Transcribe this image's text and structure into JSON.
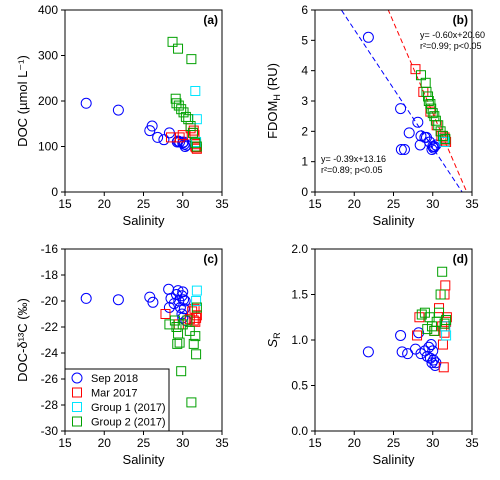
{
  "chart_data": [
    {
      "panel": "(a)",
      "type": "scatter",
      "xlabel": "Salinity",
      "ylabel": "DOC (µmol L⁻¹)",
      "xlim": [
        15,
        35
      ],
      "ylim": [
        0,
        400
      ],
      "xticks": [
        15,
        20,
        25,
        30,
        35
      ],
      "yticks": [
        0,
        100,
        200,
        300,
        400
      ],
      "series": [
        {
          "name": "Sep 2018",
          "marker": "circle",
          "color": "#0000ff",
          "points": [
            [
              17.7,
              195
            ],
            [
              21.8,
              180
            ],
            [
              25.8,
              135
            ],
            [
              26.1,
              145
            ],
            [
              26.8,
              120
            ],
            [
              27.6,
              115
            ],
            [
              28.3,
              130
            ],
            [
              29.3,
              110
            ],
            [
              29.4,
              112
            ],
            [
              29.6,
              110
            ],
            [
              30.0,
              108
            ],
            [
              30.2,
              105
            ],
            [
              30.3,
              100
            ],
            [
              30.5,
              103
            ],
            [
              30.1,
              110
            ]
          ]
        },
        {
          "name": "Mar 2017",
          "marker": "square",
          "color": "#ff0000",
          "points": [
            [
              28.5,
              120
            ],
            [
              29.6,
              120
            ],
            [
              30.0,
              125
            ],
            [
              31.0,
              140
            ],
            [
              31.3,
              130
            ],
            [
              31.5,
              125
            ],
            [
              31.6,
              100
            ],
            [
              31.7,
              98
            ],
            [
              31.8,
              95
            ],
            [
              31.7,
              105
            ],
            [
              31.4,
              135
            ]
          ]
        },
        {
          "name": "Group 1 (2017)",
          "marker": "square",
          "color": "#00e5ff",
          "points": [
            [
              31.6,
              222
            ],
            [
              31.8,
              160
            ],
            [
              31.7,
              110
            ]
          ]
        },
        {
          "name": "Group 2 (2017)",
          "marker": "square",
          "color": "#00a000",
          "points": [
            [
              28.7,
              330
            ],
            [
              29.4,
              315
            ],
            [
              31.1,
              292
            ],
            [
              29.1,
              205
            ],
            [
              29.2,
              195
            ],
            [
              29.5,
              190
            ],
            [
              29.8,
              182
            ],
            [
              30.1,
              175
            ],
            [
              30.4,
              165
            ],
            [
              30.7,
              160
            ],
            [
              31.0,
              145
            ],
            [
              31.3,
              130
            ],
            [
              31.6,
              108
            ],
            [
              31.8,
              100
            ]
          ]
        }
      ]
    },
    {
      "panel": "(b)",
      "type": "scatter",
      "xlabel": "Salinity",
      "ylabel": "FDOM",
      "ylabel_sub": "H",
      "ylabel_unit": " (RU)",
      "xlim": [
        15,
        35
      ],
      "ylim": [
        0,
        6
      ],
      "xticks": [
        15,
        20,
        25,
        30,
        35
      ],
      "yticks": [
        0,
        1,
        2,
        3,
        4,
        5,
        6
      ],
      "annotations": [
        {
          "line1": "y= -0.60x+20.60",
          "line2": "r²=0.99; p<0.05"
        },
        {
          "line1": "y= -0.39x+13.16",
          "line2": "r²=0.89; p<0.05"
        }
      ],
      "fits": [
        {
          "slope": -0.6,
          "intercept": 20.6,
          "color": "#ff0000"
        },
        {
          "slope": -0.39,
          "intercept": 13.16,
          "color": "#0000ff"
        }
      ],
      "series": [
        {
          "name": "Sep 2018",
          "marker": "circle",
          "color": "#0000ff",
          "points": [
            [
              21.8,
              5.1
            ],
            [
              25.9,
              2.75
            ],
            [
              26.0,
              1.4
            ],
            [
              26.4,
              1.4
            ],
            [
              27.0,
              1.95
            ],
            [
              28.1,
              2.3
            ],
            [
              28.4,
              1.55
            ],
            [
              28.5,
              1.85
            ],
            [
              29.0,
              1.8
            ],
            [
              29.2,
              1.8
            ],
            [
              29.6,
              1.65
            ],
            [
              29.9,
              1.4
            ],
            [
              30.1,
              1.45
            ],
            [
              30.4,
              1.55
            ],
            [
              30.2,
              1.5
            ],
            [
              30.0,
              1.5
            ]
          ]
        },
        {
          "name": "Mar 2017",
          "marker": "square",
          "color": "#ff0000",
          "points": [
            [
              27.8,
              4.05
            ],
            [
              28.8,
              3.3
            ],
            [
              29.7,
              2.65
            ],
            [
              30.5,
              2.2
            ],
            [
              31.1,
              1.85
            ],
            [
              31.4,
              1.75
            ],
            [
              31.6,
              1.7
            ],
            [
              31.7,
              1.65
            ],
            [
              31.5,
              1.8
            ]
          ]
        },
        {
          "name": "Group 1 (2017)",
          "marker": "square",
          "color": "#00e5ff",
          "points": [
            [
              31.4,
              1.75
            ],
            [
              31.5,
              1.65
            ]
          ]
        },
        {
          "name": "Group 2 (2017)",
          "marker": "square",
          "color": "#00a000",
          "points": [
            [
              28.5,
              3.85
            ],
            [
              29.2,
              3.3
            ],
            [
              29.4,
              3.15
            ],
            [
              29.5,
              3.0
            ],
            [
              29.7,
              2.9
            ],
            [
              29.8,
              2.75
            ],
            [
              30.0,
              2.6
            ],
            [
              30.2,
              2.5
            ],
            [
              30.4,
              2.35
            ],
            [
              30.7,
              2.2
            ],
            [
              31.0,
              2.0
            ],
            [
              31.3,
              1.85
            ],
            [
              31.6,
              1.75
            ],
            [
              29.1,
              3.6
            ]
          ]
        }
      ]
    },
    {
      "panel": "(c)",
      "type": "scatter",
      "xlabel": "Salinity",
      "ylabel": "DOC-δ¹³C (‰)",
      "xlim": [
        15,
        35
      ],
      "ylim": [
        -30,
        -16
      ],
      "xticks": [
        15,
        20,
        25,
        30,
        35
      ],
      "yticks": [
        -30,
        -28,
        -26,
        -24,
        -22,
        -20,
        -18,
        -16
      ],
      "legend": {
        "position": "bottom-left",
        "entries": [
          "Sep 2018",
          "Mar 2017",
          "Group 1 (2017)",
          "Group 2 (2017)"
        ]
      },
      "series": [
        {
          "name": "Sep 2018",
          "marker": "circle",
          "color": "#0000ff",
          "points": [
            [
              17.7,
              -19.8
            ],
            [
              21.8,
              -19.9
            ],
            [
              25.8,
              -19.7
            ],
            [
              26.2,
              -20.1
            ],
            [
              28.2,
              -19.1
            ],
            [
              28.5,
              -19.8
            ],
            [
              28.3,
              -20.5
            ],
            [
              28.9,
              -20.2
            ],
            [
              29.2,
              -19.5
            ],
            [
              29.4,
              -19.2
            ],
            [
              29.5,
              -20.0
            ],
            [
              29.7,
              -20.5
            ],
            [
              29.9,
              -19.6
            ],
            [
              30.0,
              -19.3
            ],
            [
              30.1,
              -19.9
            ],
            [
              30.2,
              -20.6
            ],
            [
              30.0,
              -21.3
            ],
            [
              30.4,
              -21.5
            ],
            [
              30.3,
              -20.0
            ],
            [
              29.9,
              -21.0
            ]
          ]
        },
        {
          "name": "Mar 2017",
          "marker": "square",
          "color": "#ff0000",
          "points": [
            [
              27.8,
              -21.0
            ],
            [
              29.5,
              -21.8
            ],
            [
              30.9,
              -21.4
            ],
            [
              31.2,
              -20.8
            ],
            [
              31.4,
              -21.5
            ],
            [
              31.6,
              -21.6
            ],
            [
              31.7,
              -21.3
            ],
            [
              31.8,
              -21.1
            ],
            [
              31.5,
              -20.6
            ]
          ]
        },
        {
          "name": "Group 1 (2017)",
          "marker": "square",
          "color": "#00e5ff",
          "points": [
            [
              31.8,
              -19.2
            ],
            [
              31.7,
              -20.0
            ]
          ]
        },
        {
          "name": "Group 2 (2017)",
          "marker": "square",
          "color": "#00a000",
          "points": [
            [
              28.3,
              -21.8
            ],
            [
              29.0,
              -21.5
            ],
            [
              29.3,
              -23.3
            ],
            [
              29.6,
              -23.2
            ],
            [
              29.8,
              -25.4
            ],
            [
              29.4,
              -22.5
            ],
            [
              30.0,
              -21.8
            ],
            [
              30.6,
              -21.5
            ],
            [
              30.9,
              -22.3
            ],
            [
              31.1,
              -27.8
            ],
            [
              31.4,
              -23.3
            ],
            [
              31.6,
              -22.7
            ],
            [
              31.7,
              -24.1
            ],
            [
              31.8,
              -20.5
            ],
            [
              29.2,
              -22.0
            ]
          ]
        }
      ]
    },
    {
      "panel": "(d)",
      "type": "scatter",
      "xlabel": "Salinity",
      "ylabel": "S",
      "ylabel_sub": "R",
      "xlim": [
        15,
        35
      ],
      "ylim": [
        0.0,
        2.0
      ],
      "xticks": [
        15,
        20,
        25,
        30,
        35
      ],
      "yticks": [
        "0.0",
        "0.5",
        "1.0",
        "1.5",
        "2.0"
      ],
      "series": [
        {
          "name": "Sep 2018",
          "marker": "circle",
          "color": "#0000ff",
          "points": [
            [
              21.8,
              0.87
            ],
            [
              25.9,
              1.05
            ],
            [
              26.1,
              0.87
            ],
            [
              26.8,
              0.85
            ],
            [
              27.8,
              0.9
            ],
            [
              28.2,
              1.08
            ],
            [
              28.5,
              0.85
            ],
            [
              29.0,
              0.88
            ],
            [
              29.3,
              0.82
            ],
            [
              29.5,
              0.92
            ],
            [
              29.7,
              0.8
            ],
            [
              29.9,
              0.75
            ],
            [
              30.1,
              0.78
            ],
            [
              30.3,
              0.72
            ],
            [
              30.4,
              0.75
            ],
            [
              30.0,
              0.88
            ],
            [
              29.8,
              0.95
            ]
          ]
        },
        {
          "name": "Mar 2017",
          "marker": "square",
          "color": "#ff0000",
          "points": [
            [
              28.0,
              1.05
            ],
            [
              28.3,
              1.25
            ],
            [
              30.2,
              1.1
            ],
            [
              30.8,
              1.35
            ],
            [
              31.2,
              1.15
            ],
            [
              31.4,
              0.7
            ],
            [
              31.5,
              1.5
            ],
            [
              31.6,
              1.6
            ],
            [
              31.7,
              1.2
            ],
            [
              31.5,
              1.08
            ],
            [
              31.3,
              0.95
            ],
            [
              31.8,
              1.25
            ]
          ]
        },
        {
          "name": "Group 1 (2017)",
          "marker": "square",
          "color": "#00e5ff",
          "points": [
            [
              31.6,
              1.15
            ],
            [
              31.7,
              1.05
            ]
          ]
        },
        {
          "name": "Group 2 (2017)",
          "marker": "square",
          "color": "#00a000",
          "points": [
            [
              28.6,
              1.28
            ],
            [
              29.0,
              1.3
            ],
            [
              29.6,
              1.25
            ],
            [
              29.9,
              1.15
            ],
            [
              30.2,
              1.1
            ],
            [
              30.5,
              1.2
            ],
            [
              30.8,
              1.3
            ],
            [
              31.0,
              1.5
            ],
            [
              31.2,
              1.75
            ],
            [
              31.5,
              1.18
            ],
            [
              31.7,
              1.22
            ],
            [
              29.3,
              1.12
            ]
          ]
        }
      ]
    }
  ]
}
